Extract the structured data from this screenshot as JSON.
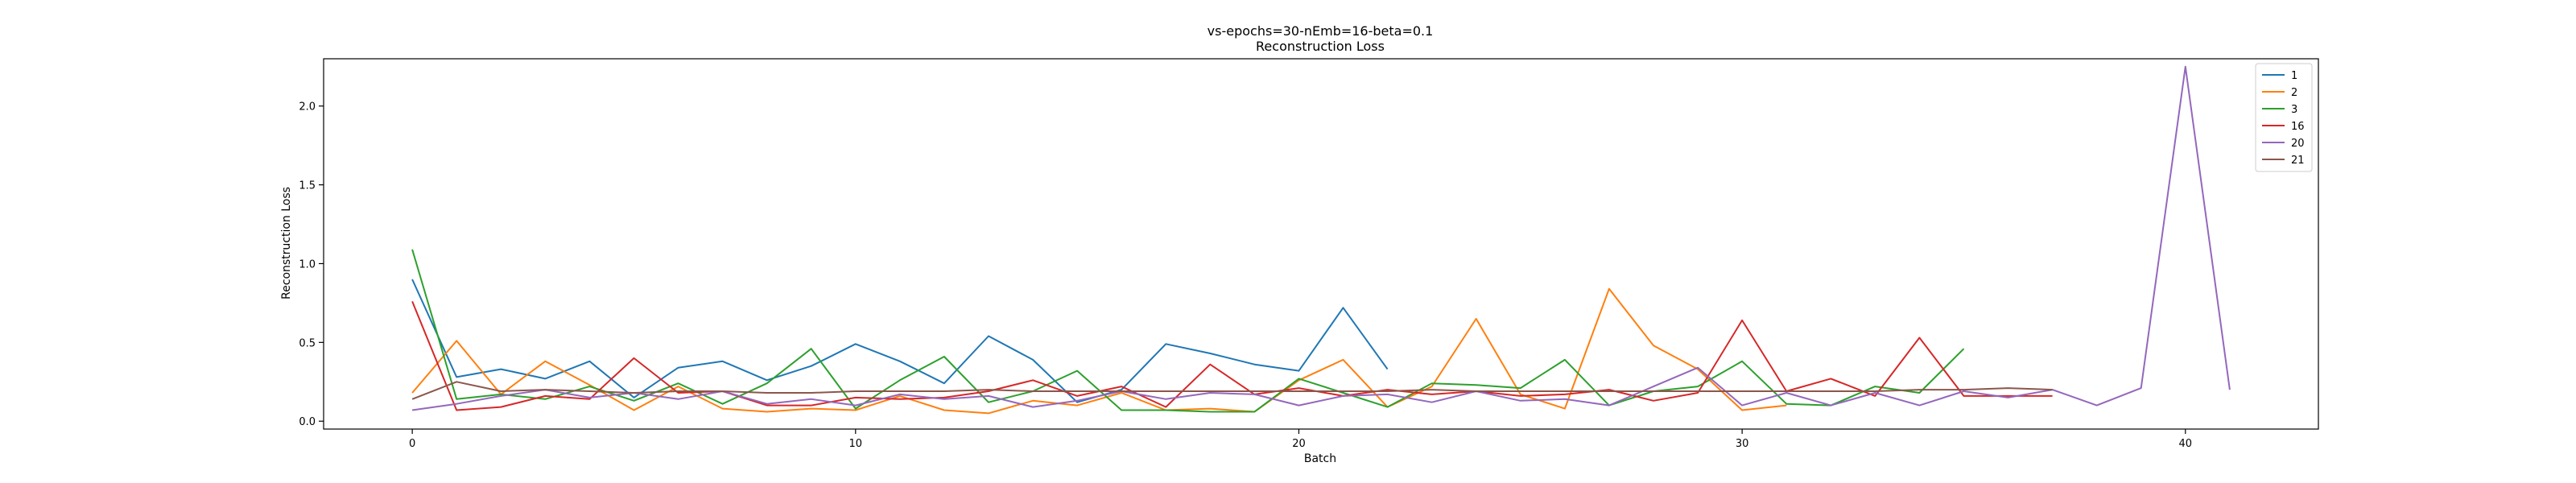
{
  "chart_data": {
    "type": "line",
    "title": "vs-epochs=30-nEmb=16-beta=0.1",
    "subtitle": "Reconstruction Loss",
    "xlabel": "Batch",
    "ylabel": "Reconstruction Loss",
    "xlim": [
      -2,
      43
    ],
    "ylim": [
      -0.05,
      2.3
    ],
    "xticks": [
      0,
      10,
      20,
      30,
      40
    ],
    "yticks": [
      0.0,
      0.5,
      1.0,
      1.5,
      2.0
    ],
    "ytick_labels": [
      "0.0",
      "0.5",
      "1.0",
      "1.5",
      "2.0"
    ],
    "grid": false,
    "legend_position": "top-right",
    "series": [
      {
        "name": "1",
        "color": "#1f77b4",
        "x": [
          0,
          1,
          2,
          3,
          4,
          5,
          6,
          7,
          8,
          9,
          10,
          11,
          12,
          13,
          14,
          15,
          16,
          17,
          18,
          19,
          20,
          21,
          22
        ],
        "values": [
          0.9,
          0.28,
          0.33,
          0.27,
          0.38,
          0.15,
          0.34,
          0.38,
          0.26,
          0.35,
          0.49,
          0.38,
          0.24,
          0.54,
          0.39,
          0.12,
          0.2,
          0.49,
          0.43,
          0.36,
          0.32,
          0.72,
          0.33
        ]
      },
      {
        "name": "2",
        "color": "#ff7f0e",
        "x": [
          0,
          1,
          2,
          3,
          4,
          5,
          6,
          7,
          8,
          9,
          10,
          11,
          12,
          13,
          14,
          15,
          16,
          17,
          18,
          19,
          20,
          21,
          22,
          23,
          24,
          25,
          26,
          27,
          28,
          29,
          30,
          31
        ],
        "values": [
          0.18,
          0.51,
          0.17,
          0.38,
          0.23,
          0.07,
          0.22,
          0.08,
          0.06,
          0.08,
          0.07,
          0.16,
          0.07,
          0.05,
          0.13,
          0.1,
          0.18,
          0.07,
          0.08,
          0.06,
          0.26,
          0.39,
          0.09,
          0.22,
          0.65,
          0.17,
          0.08,
          0.84,
          0.48,
          0.33,
          0.07,
          0.1
        ]
      },
      {
        "name": "3",
        "color": "#2ca02c",
        "x": [
          0,
          1,
          2,
          3,
          4,
          5,
          6,
          7,
          8,
          9,
          10,
          11,
          12,
          13,
          14,
          15,
          16,
          17,
          18,
          19,
          20,
          21,
          22,
          23,
          24,
          25,
          26,
          27,
          28,
          29,
          30,
          31,
          32,
          33,
          34,
          35
        ],
        "values": [
          1.09,
          0.14,
          0.17,
          0.14,
          0.22,
          0.13,
          0.24,
          0.11,
          0.24,
          0.46,
          0.08,
          0.26,
          0.41,
          0.12,
          0.19,
          0.32,
          0.07,
          0.07,
          0.06,
          0.06,
          0.27,
          0.18,
          0.09,
          0.24,
          0.23,
          0.21,
          0.39,
          0.1,
          0.19,
          0.22,
          0.38,
          0.11,
          0.1,
          0.22,
          0.18,
          0.46
        ]
      },
      {
        "name": "16",
        "color": "#d62728",
        "x": [
          0,
          1,
          2,
          3,
          4,
          5,
          6,
          7,
          8,
          9,
          10,
          11,
          12,
          13,
          14,
          15,
          16,
          17,
          18,
          19,
          20,
          21,
          22,
          23,
          24,
          25,
          26,
          27,
          28,
          29,
          30,
          31,
          32,
          33,
          34,
          35,
          36,
          37
        ],
        "values": [
          0.76,
          0.07,
          0.09,
          0.16,
          0.14,
          0.4,
          0.18,
          0.19,
          0.1,
          0.1,
          0.15,
          0.14,
          0.15,
          0.19,
          0.26,
          0.16,
          0.22,
          0.09,
          0.36,
          0.17,
          0.21,
          0.16,
          0.2,
          0.17,
          0.19,
          0.16,
          0.17,
          0.2,
          0.13,
          0.18,
          0.64,
          0.19,
          0.27,
          0.16,
          0.53,
          0.16,
          0.16,
          0.16
        ]
      },
      {
        "name": "20",
        "color": "#9467bd",
        "x": [
          0,
          1,
          2,
          3,
          4,
          5,
          6,
          7,
          8,
          9,
          10,
          11,
          12,
          13,
          14,
          15,
          16,
          17,
          18,
          19,
          20,
          21,
          22,
          23,
          24,
          25,
          26,
          27,
          28,
          29,
          30,
          31,
          32,
          33,
          34,
          35,
          36,
          37,
          38,
          39,
          40,
          41
        ],
        "values": [
          0.07,
          0.11,
          0.16,
          0.2,
          0.15,
          0.18,
          0.14,
          0.19,
          0.11,
          0.14,
          0.1,
          0.17,
          0.14,
          0.16,
          0.09,
          0.13,
          0.19,
          0.14,
          0.18,
          0.17,
          0.1,
          0.16,
          0.17,
          0.12,
          0.19,
          0.13,
          0.14,
          0.1,
          0.22,
          0.34,
          0.1,
          0.18,
          0.1,
          0.18,
          0.1,
          0.19,
          0.15,
          0.2,
          0.1,
          0.21,
          2.25,
          0.2
        ]
      },
      {
        "name": "21",
        "color": "#8c564b",
        "x": [
          0,
          1,
          2,
          3,
          4,
          5,
          6,
          7,
          8,
          9,
          10,
          11,
          12,
          13,
          14,
          15,
          16,
          17,
          18,
          19,
          20,
          21,
          22,
          23,
          24,
          25,
          26,
          27,
          28,
          29,
          30,
          31,
          32,
          33,
          34,
          35,
          36,
          37
        ],
        "values": [
          0.14,
          0.25,
          0.19,
          0.2,
          0.19,
          0.18,
          0.19,
          0.19,
          0.18,
          0.18,
          0.19,
          0.19,
          0.19,
          0.2,
          0.19,
          0.19,
          0.19,
          0.19,
          0.19,
          0.19,
          0.19,
          0.19,
          0.19,
          0.2,
          0.19,
          0.19,
          0.19,
          0.19,
          0.19,
          0.19,
          0.19,
          0.19,
          0.19,
          0.19,
          0.2,
          0.2,
          0.21,
          0.2
        ]
      }
    ]
  }
}
